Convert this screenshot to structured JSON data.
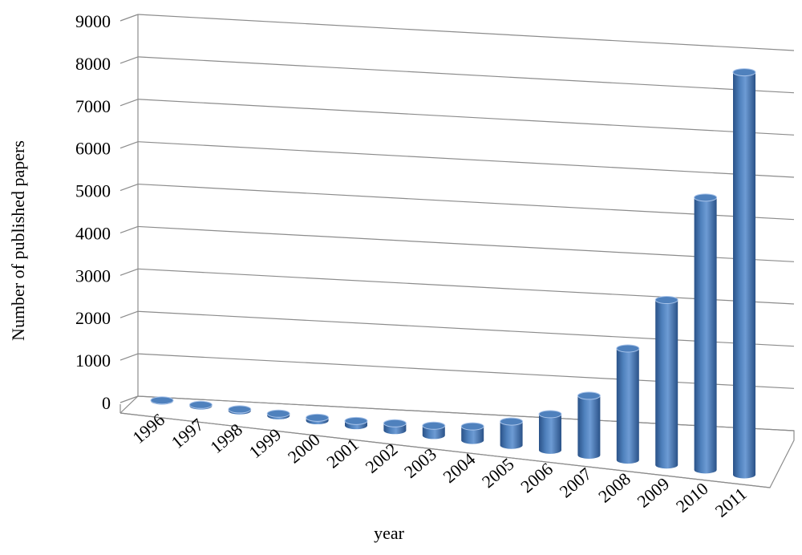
{
  "chart_data": {
    "type": "bar",
    "style": "3d-cylinder",
    "title": "",
    "xlabel": "year",
    "ylabel": "Number of published papers",
    "ylim": [
      0,
      9000
    ],
    "yticks": [
      "0",
      "1000",
      "2000",
      "3000",
      "4000",
      "5000",
      "6000",
      "7000",
      "8000",
      "9000"
    ],
    "categories": [
      "1996",
      "1997",
      "1998",
      "1999",
      "2000",
      "2001",
      "2002",
      "2003",
      "2004",
      "2005",
      "2006",
      "2007",
      "2008",
      "2009",
      "2010",
      "2011"
    ],
    "values": [
      15,
      25,
      35,
      50,
      70,
      110,
      170,
      230,
      330,
      560,
      850,
      1400,
      2630,
      3890,
      6420,
      9490
    ],
    "grid": true,
    "legend": "none",
    "colors": {
      "bar": "#4f81bd",
      "bar_dark": "#2a5288",
      "bar_light": "#a9c4ea",
      "gridline": "#8c8c8c",
      "axis": "#8c8c8c"
    }
  }
}
